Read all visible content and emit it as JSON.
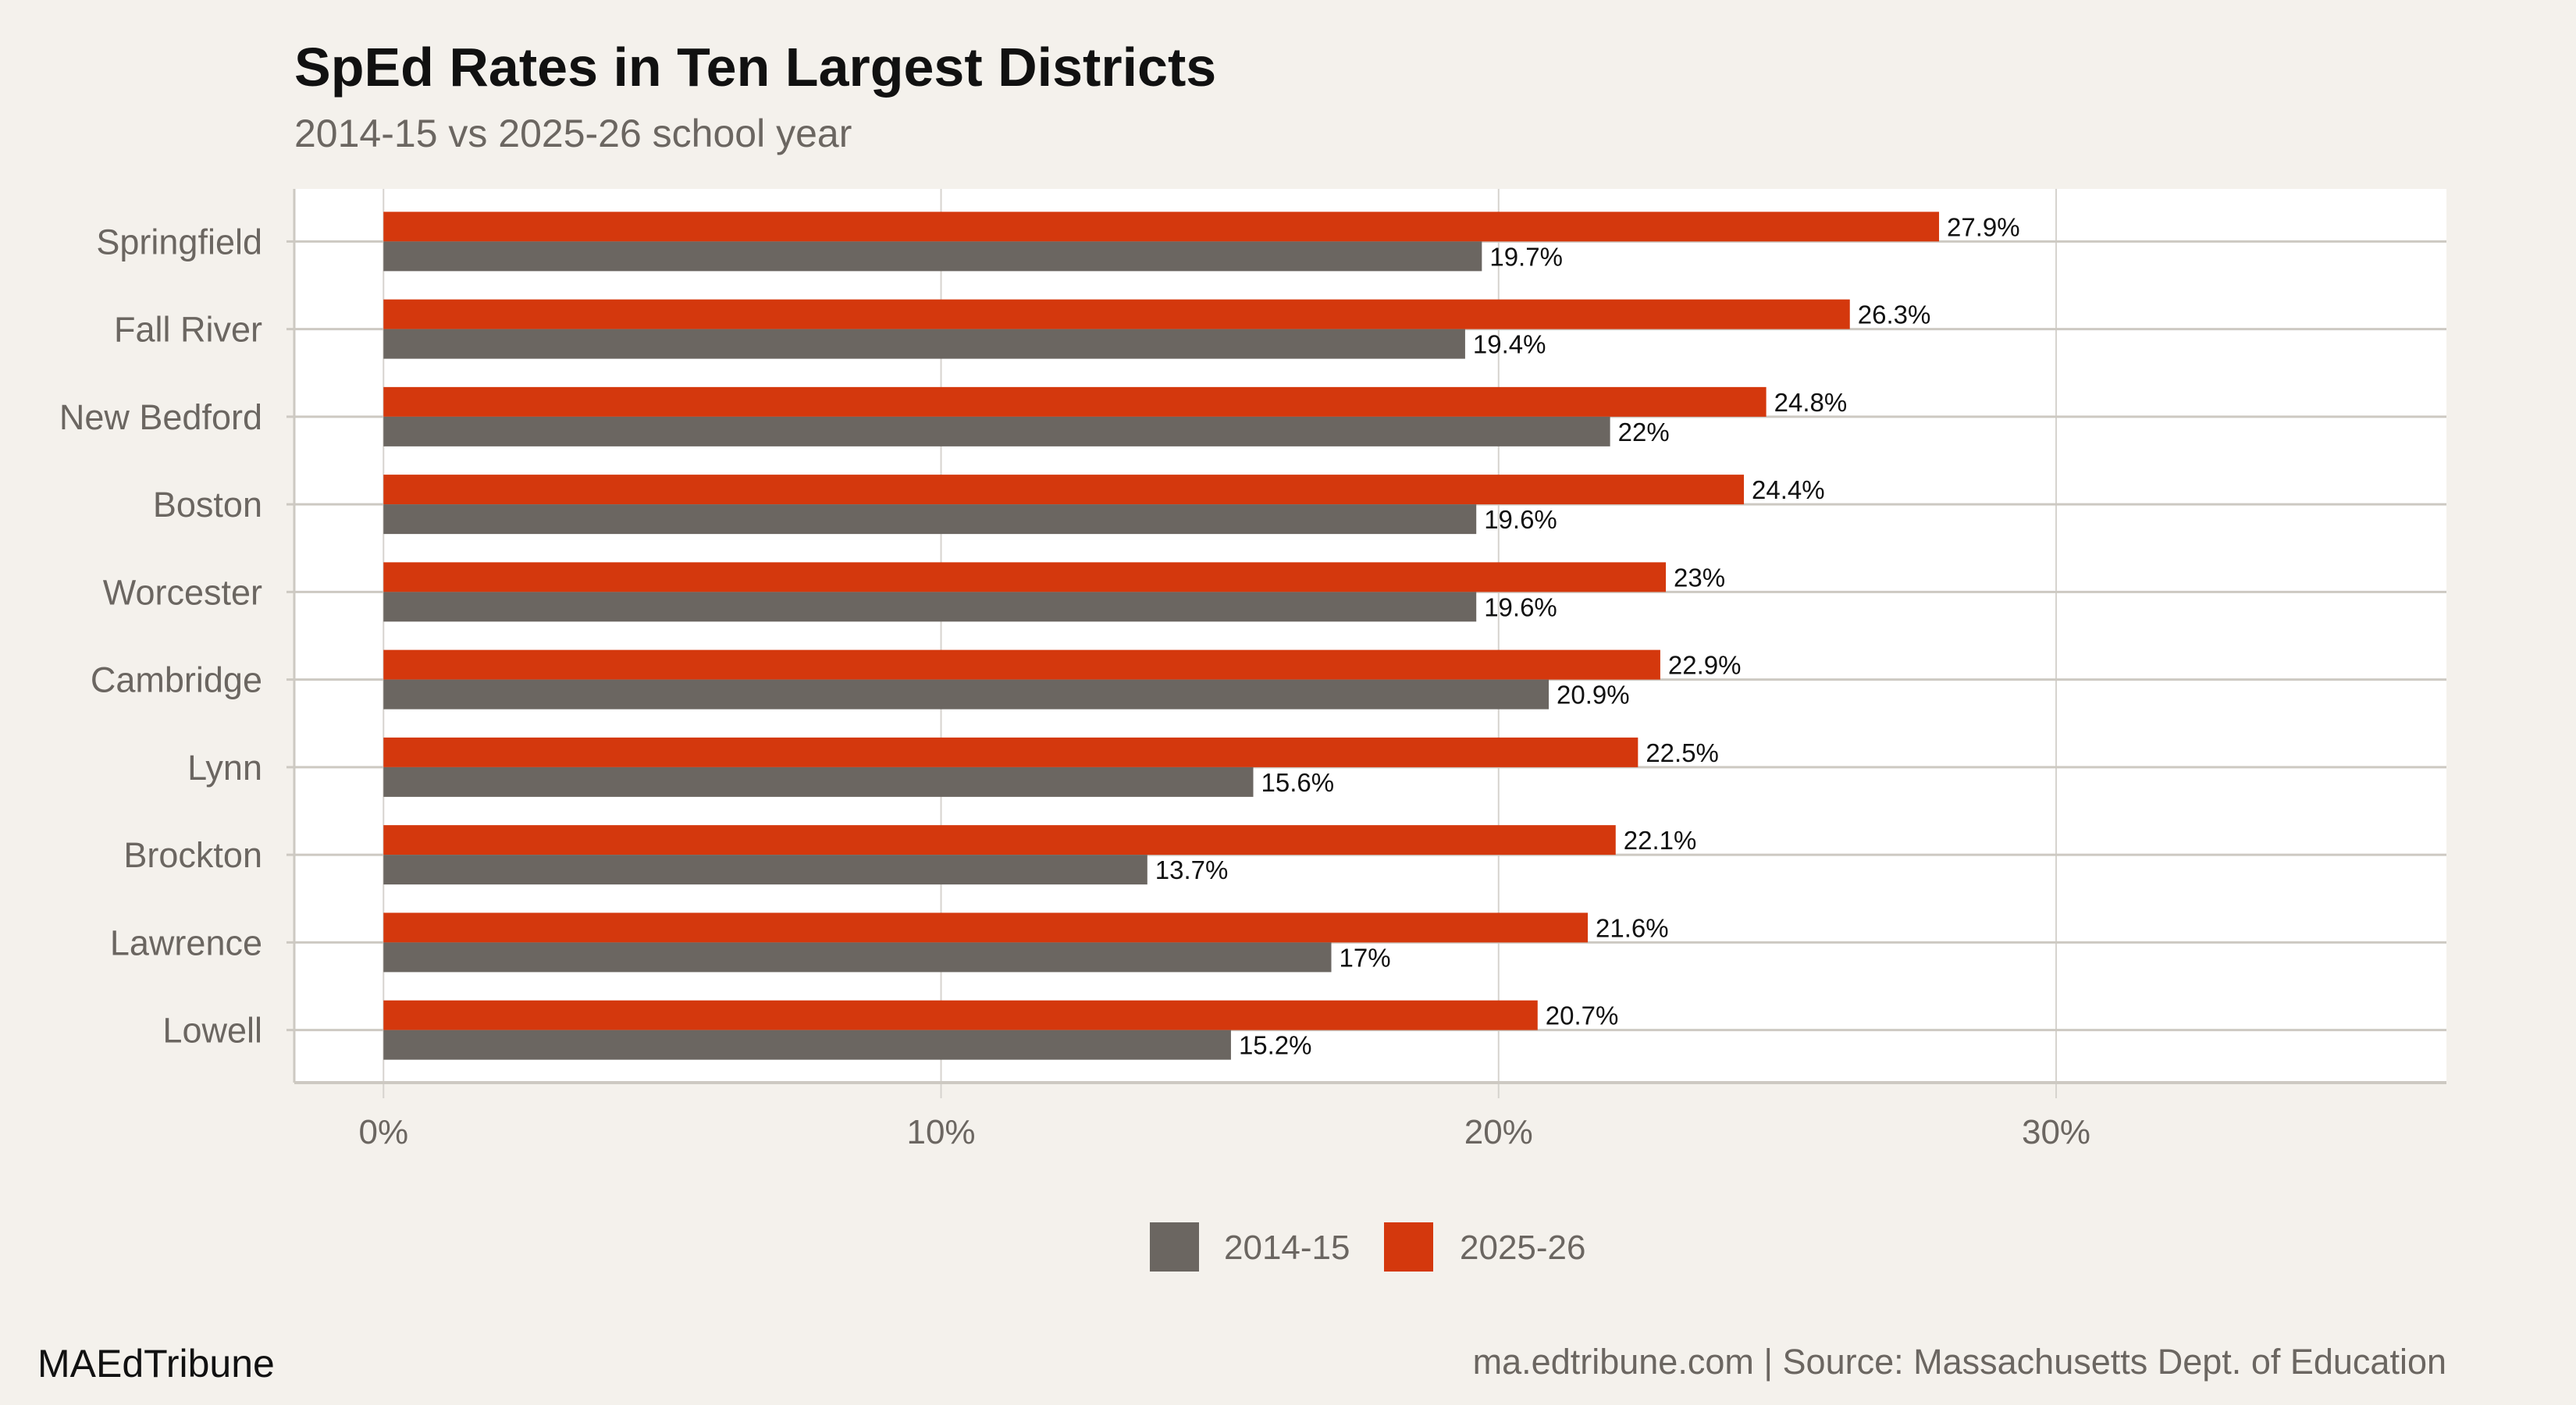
{
  "chart_data": {
    "type": "bar",
    "orientation": "horizontal",
    "title": "SpEd Rates in Ten Largest Districts",
    "subtitle": "2014-15 vs 2025-26 school year",
    "categories": [
      "Springfield",
      "Fall River",
      "New Bedford",
      "Boston",
      "Worcester",
      "Cambridge",
      "Lynn",
      "Brockton",
      "Lawrence",
      "Lowell"
    ],
    "series": [
      {
        "name": "2014-15",
        "color": "#6b6661",
        "values": [
          19.7,
          19.4,
          22,
          19.6,
          19.6,
          20.9,
          15.6,
          13.7,
          17,
          15.2
        ],
        "labels": [
          "19.7%",
          "19.4%",
          "22%",
          "19.6%",
          "19.6%",
          "20.9%",
          "15.6%",
          "13.7%",
          "17%",
          "15.2%"
        ]
      },
      {
        "name": "2025-26",
        "color": "#d4380d",
        "values": [
          27.9,
          26.3,
          24.8,
          24.4,
          23,
          22.9,
          22.5,
          22.1,
          21.6,
          20.7
        ],
        "labels": [
          "27.9%",
          "26.3%",
          "24.8%",
          "24.4%",
          "23%",
          "22.9%",
          "22.5%",
          "22.1%",
          "21.6%",
          "20.7%"
        ]
      }
    ],
    "xticks": [
      0,
      10,
      20,
      30
    ],
    "xtick_labels": [
      "0%",
      "10%",
      "20%",
      "30%"
    ],
    "xlim": [
      -1.6,
      37
    ],
    "xlabel": "",
    "ylabel": "",
    "grid": true,
    "legend_position": "bottom"
  },
  "footer": {
    "brand": "MAEdTribune",
    "source": "ma.edtribune.com | Source: Massachusetts Dept. of Education"
  },
  "colors": {
    "background": "#f4f1ec",
    "panel": "#ffffff",
    "grid": "#cdc9c2"
  }
}
